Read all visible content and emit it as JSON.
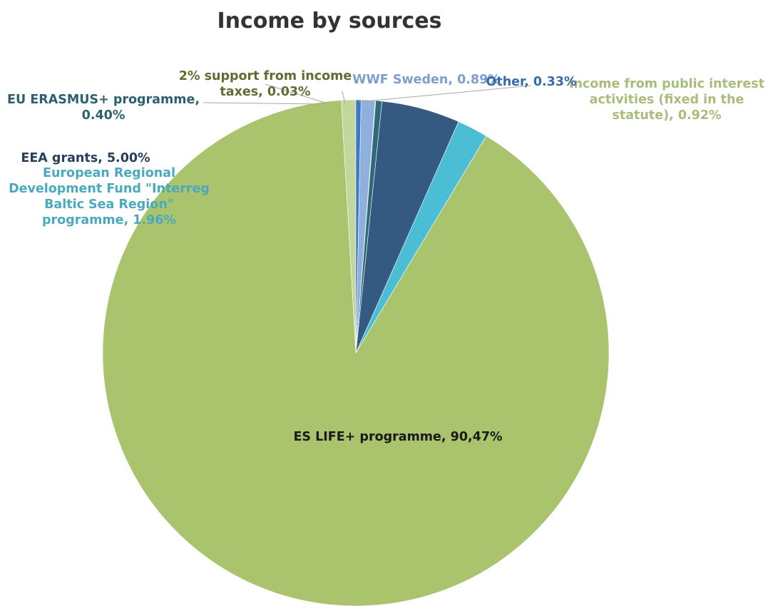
{
  "chart_data": {
    "type": "pie",
    "title": "Income by sources",
    "slices": [
      {
        "label_lines": [
          "Income from public interest",
          "activities (fixed in the",
          "statute), 0.92%"
        ],
        "value": 0.92,
        "color": "#c3d69b",
        "label_color": "#a8bd7a"
      },
      {
        "label_lines": [
          "ES LIFE+ programme, 90,47%"
        ],
        "value": 90.47,
        "color": "#a9c46d",
        "label_color": "#1a1a1a"
      },
      {
        "label_lines": [
          "European Regional",
          "Development Fund  \"Interreg",
          "Baltic Sea Region\"",
          "programme, 1.96%"
        ],
        "value": 1.96,
        "color": "#4bbdd5",
        "label_color": "#4aa9bf"
      },
      {
        "label_lines": [
          "EEA grants, 5.00%"
        ],
        "value": 5.0,
        "color": "#355a82",
        "label_color": "#263f5c"
      },
      {
        "label_lines": [
          "EU ERASMUS+ programme,",
          "0.40%"
        ],
        "value": 0.4,
        "color": "#2e6a78",
        "label_color": "#2e5f6e"
      },
      {
        "label_lines": [
          "2% support from income",
          "taxes, 0.03%"
        ],
        "value": 0.03,
        "color": "#6d7f3c",
        "label_color": "#5e6e33"
      },
      {
        "label_lines": [
          "WWF Sweden, 0.89%"
        ],
        "value": 0.89,
        "color": "#8fb0dc",
        "label_color": "#7e9fcc"
      },
      {
        "label_lines": [
          "Other, 0.33%"
        ],
        "value": 0.33,
        "color": "#3f78c6",
        "label_color": "#3a6aa8"
      }
    ]
  }
}
